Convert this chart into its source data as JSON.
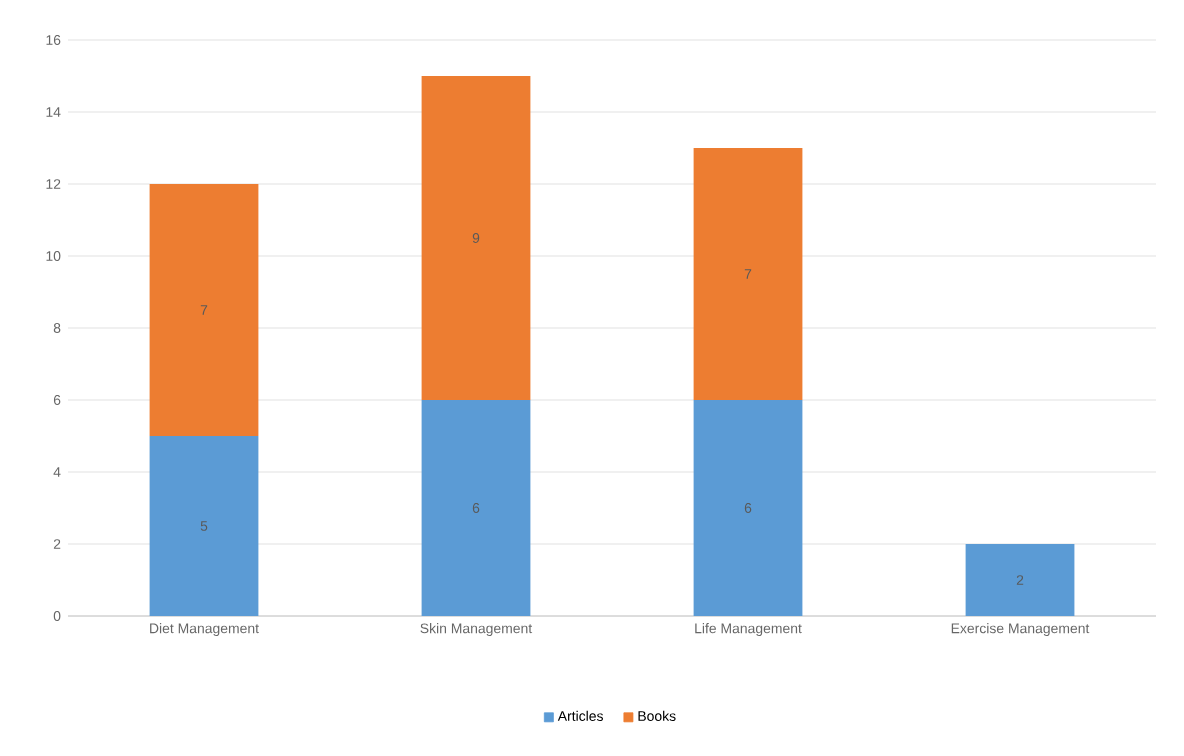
{
  "chart_data": {
    "type": "bar",
    "stacked": true,
    "categories": [
      "Diet Management",
      "Skin Management",
      "Life Management",
      "Exercise Management"
    ],
    "series": [
      {
        "name": "Articles",
        "color": "#5b9bd5",
        "values": [
          5,
          6,
          6,
          2
        ]
      },
      {
        "name": "Books",
        "color": "#ed7d31",
        "values": [
          7,
          9,
          7,
          null
        ]
      }
    ],
    "ylim": [
      0,
      16
    ],
    "yticks": [
      0,
      2,
      4,
      6,
      8,
      10,
      12,
      14,
      16
    ],
    "grid": "y",
    "legend": "bottom",
    "data_labels": true
  }
}
